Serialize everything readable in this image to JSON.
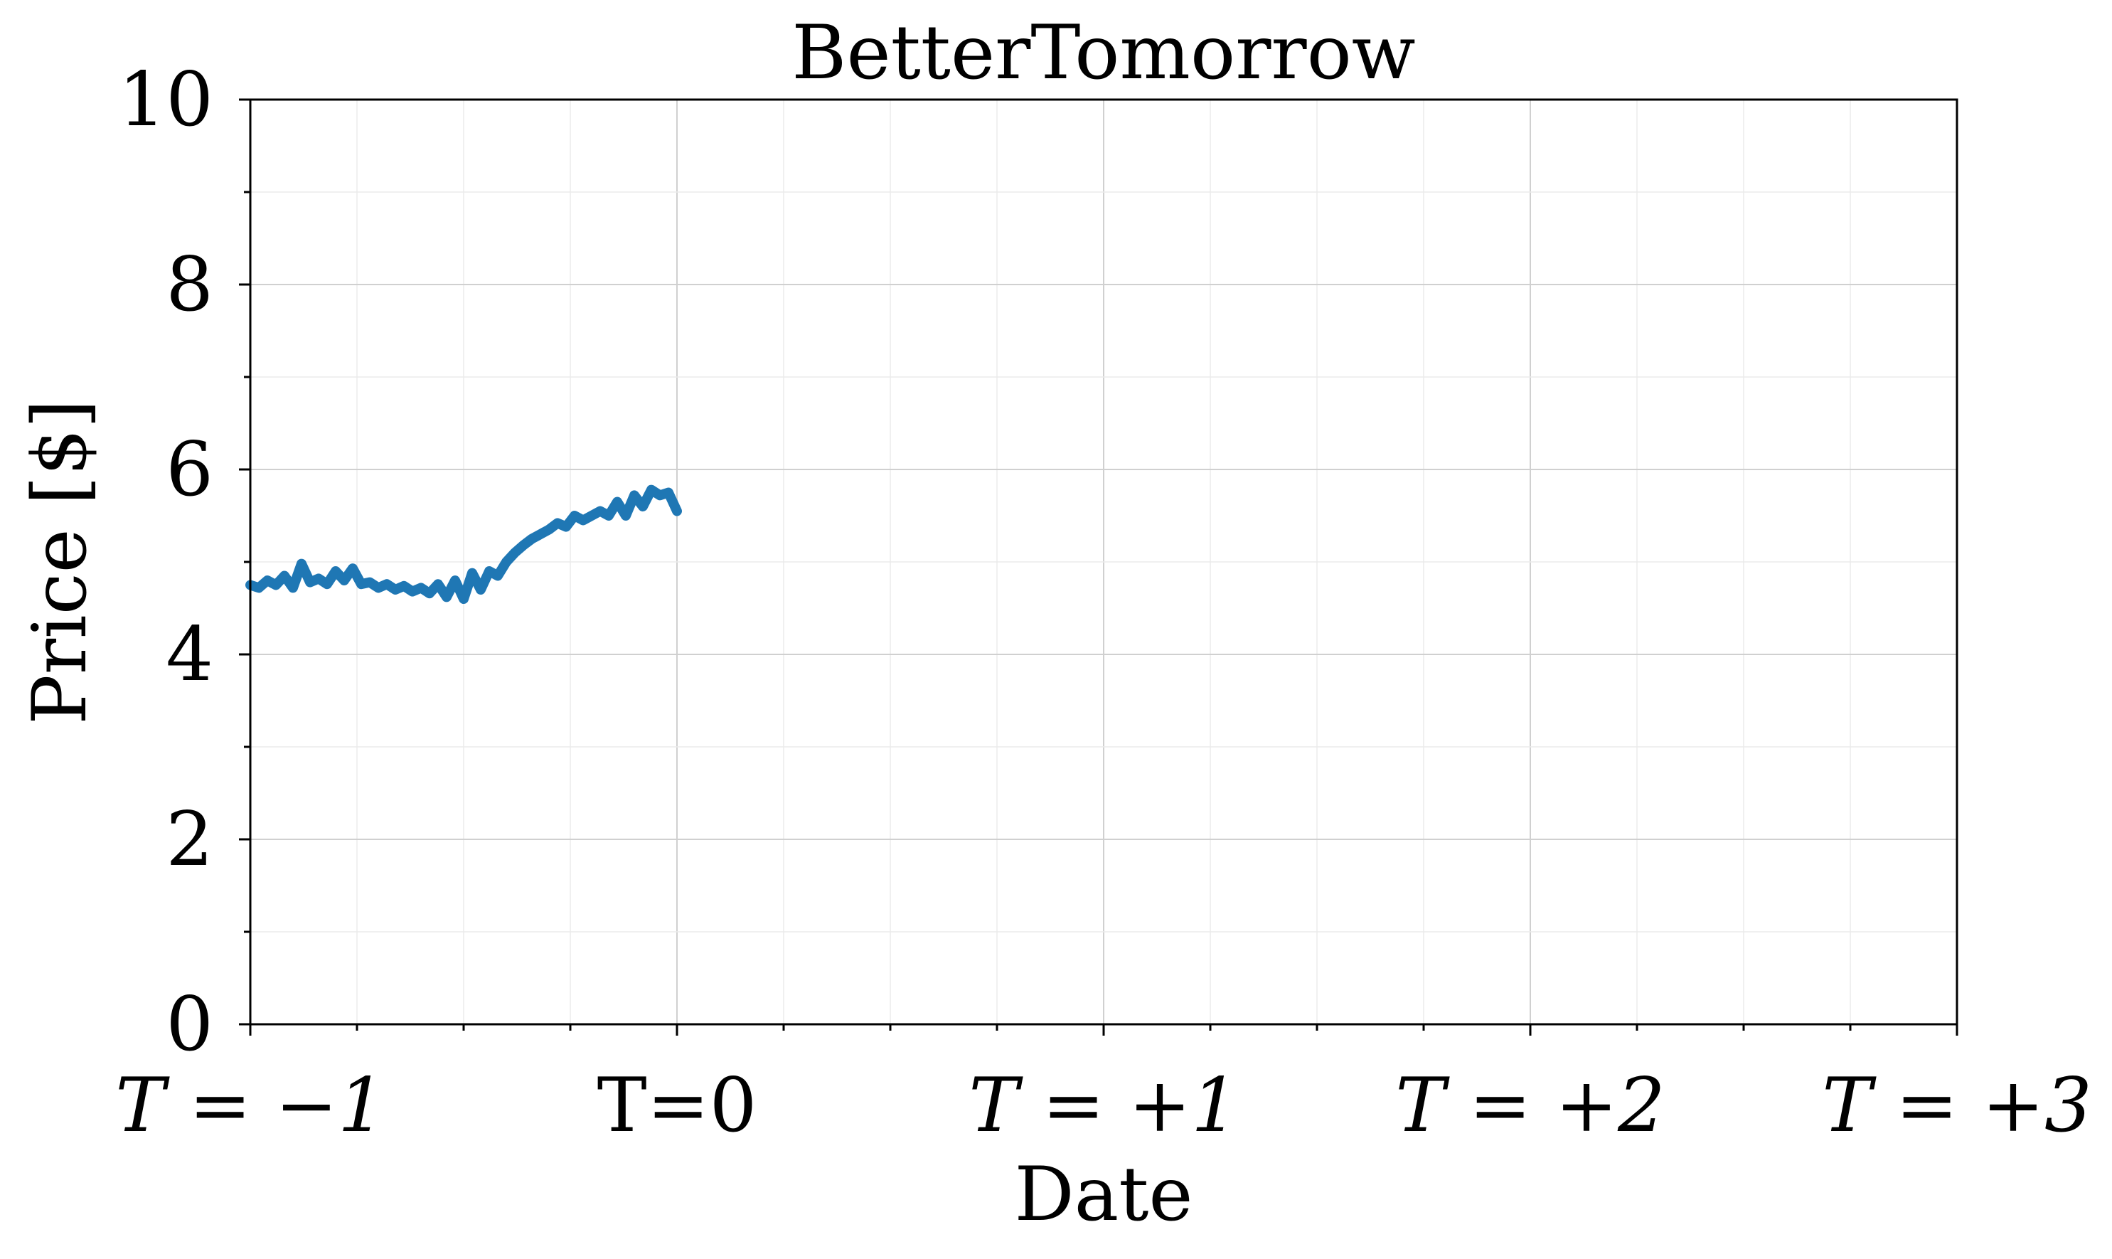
{
  "chart_data": {
    "type": "line",
    "title": "BetterTomorrow",
    "xlabel": "Date",
    "ylabel": "Price [$]",
    "ylim": [
      0,
      10
    ],
    "xlim": [
      -1,
      3
    ],
    "yticks": [
      0,
      2,
      4,
      6,
      8,
      10
    ],
    "ytick_labels": [
      "0",
      "2",
      "4",
      "6",
      "8",
      "10"
    ],
    "xticks": [
      -1,
      0,
      1,
      2,
      3
    ],
    "xtick_labels": [
      "T = −1",
      "T=0",
      "T = +1",
      "T = +2",
      "T = +3"
    ],
    "grid": true,
    "minor_grid": true,
    "series": [
      {
        "color": "#1f77b4",
        "x": [
          -1.0,
          -0.98,
          -0.96,
          -0.94,
          -0.92,
          -0.9,
          -0.88,
          -0.86,
          -0.84,
          -0.82,
          -0.8,
          -0.78,
          -0.76,
          -0.74,
          -0.72,
          -0.7,
          -0.68,
          -0.66,
          -0.64,
          -0.62,
          -0.6,
          -0.58,
          -0.56,
          -0.54,
          -0.52,
          -0.5,
          -0.48,
          -0.46,
          -0.44,
          -0.42,
          -0.4,
          -0.38,
          -0.36,
          -0.34,
          -0.32,
          -0.3,
          -0.28,
          -0.26,
          -0.24,
          -0.22,
          -0.2,
          -0.18,
          -0.16,
          -0.14,
          -0.12,
          -0.1,
          -0.08,
          -0.06,
          -0.04,
          -0.02,
          0.0
        ],
        "y": [
          4.75,
          4.72,
          4.8,
          4.75,
          4.85,
          4.72,
          4.98,
          4.78,
          4.82,
          4.76,
          4.9,
          4.8,
          4.93,
          4.76,
          4.78,
          4.72,
          4.76,
          4.7,
          4.74,
          4.68,
          4.72,
          4.66,
          4.76,
          4.62,
          4.8,
          4.6,
          4.88,
          4.7,
          4.9,
          4.85,
          5.0,
          5.1,
          5.18,
          5.25,
          5.3,
          5.35,
          5.42,
          5.38,
          5.5,
          5.45,
          5.5,
          5.55,
          5.5,
          5.65,
          5.5,
          5.72,
          5.6,
          5.78,
          5.72,
          5.75,
          5.55
        ]
      }
    ]
  }
}
